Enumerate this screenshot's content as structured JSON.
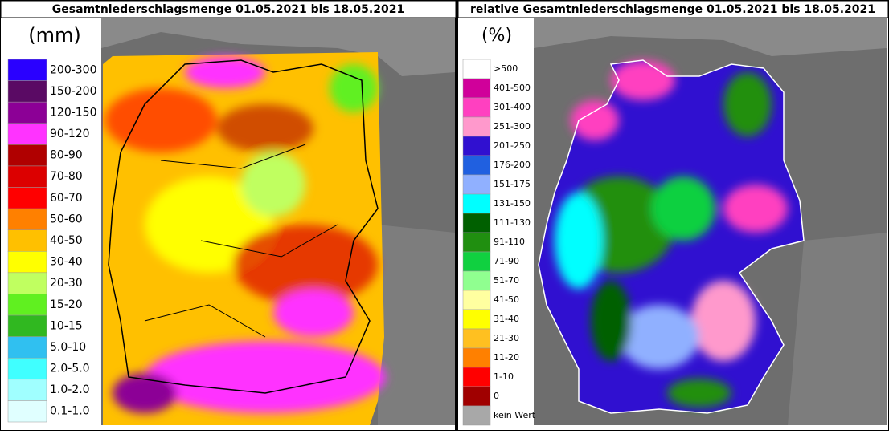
{
  "panels": [
    {
      "title": "Gesamtniederschlagsmenge 01.05.2021 bis 18.05.2021",
      "unit": "(mm)",
      "legend": [
        {
          "label": "200-300",
          "color": "#2a00ff"
        },
        {
          "label": "150-200",
          "color": "#5a0a64"
        },
        {
          "label": "120-150",
          "color": "#8c0096"
        },
        {
          "label": "90-120",
          "color": "#ff33ff"
        },
        {
          "label": "80-90",
          "color": "#b00000"
        },
        {
          "label": "70-80",
          "color": "#dc0000"
        },
        {
          "label": "60-70",
          "color": "#ff0000"
        },
        {
          "label": "50-60",
          "color": "#ff8000"
        },
        {
          "label": "40-50",
          "color": "#ffc000"
        },
        {
          "label": "30-40",
          "color": "#ffff00"
        },
        {
          "label": "20-30",
          "color": "#c0ff60"
        },
        {
          "label": "15-20",
          "color": "#60f020"
        },
        {
          "label": "10-15",
          "color": "#30b820"
        },
        {
          "label": "5.0-10",
          "color": "#30c0f0"
        },
        {
          "label": "2.0-5.0",
          "color": "#40ffff"
        },
        {
          "label": "1.0-2.0",
          "color": "#a0ffff"
        },
        {
          "label": "0.1-1.0",
          "color": "#e0ffff"
        }
      ]
    },
    {
      "title": "relative Gesamtniederschlagsmenge 01.05.2021 bis 18.05.2021",
      "unit": "(%)",
      "legend": [
        {
          "label": ">500",
          "color": "#ffffff"
        },
        {
          "label": "401-500",
          "color": "#d0009a"
        },
        {
          "label": "301-400",
          "color": "#ff40c0"
        },
        {
          "label": "251-300",
          "color": "#ff99cc"
        },
        {
          "label": "201-250",
          "color": "#3010d0"
        },
        {
          "label": "176-200",
          "color": "#2060e0"
        },
        {
          "label": "151-175",
          "color": "#90b0ff"
        },
        {
          "label": "131-150",
          "color": "#00ffff"
        },
        {
          "label": "111-130",
          "color": "#006000"
        },
        {
          "label": "91-110",
          "color": "#208f10"
        },
        {
          "label": "71-90",
          "color": "#10d040"
        },
        {
          "label": "51-70",
          "color": "#90ff90"
        },
        {
          "label": "41-50",
          "color": "#ffffa0"
        },
        {
          "label": "31-40",
          "color": "#ffff00"
        },
        {
          "label": "21-30",
          "color": "#ffc020"
        },
        {
          "label": "11-20",
          "color": "#ff8000"
        },
        {
          "label": "1-10",
          "color": "#ff0000"
        },
        {
          "label": "0",
          "color": "#a00000"
        },
        {
          "label": "kein Wert",
          "color": "#a8a8a8"
        }
      ]
    }
  ]
}
